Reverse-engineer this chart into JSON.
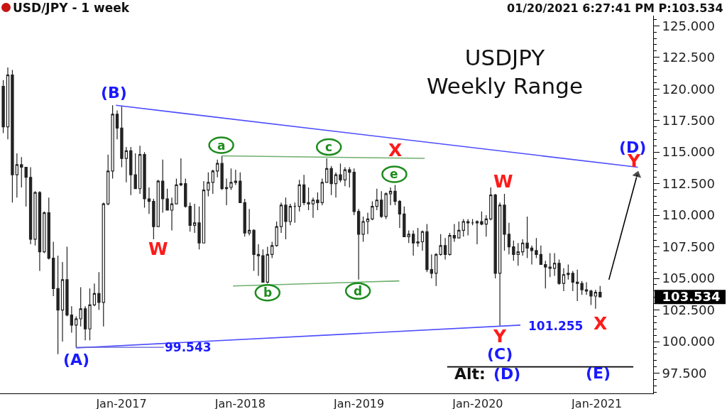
{
  "chart_data": {
    "type": "candlestick",
    "title": "USD/JPY - 1 week",
    "subtitle": "USDJPY\nWeekly Range",
    "color": "#222222",
    "x": [
      "2016-01-04",
      "2016-01-18",
      "2016-02-01",
      "2016-02-15",
      "2016-02-29",
      "2016-03-14",
      "2016-03-28",
      "2016-04-11",
      "2016-04-25",
      "2016-05-09",
      "2016-05-23",
      "2016-06-06",
      "2016-06-20",
      "2016-07-04",
      "2016-07-18",
      "2016-08-01",
      "2016-08-15",
      "2016-08-29",
      "2016-09-12",
      "2016-09-26",
      "2016-10-10",
      "2016-10-24",
      "2016-11-07",
      "2016-11-21",
      "2016-12-05",
      "2016-12-19",
      "2017-01-02",
      "2017-01-16",
      "2017-01-30",
      "2017-02-13",
      "2017-02-27",
      "2017-03-13",
      "2017-03-27",
      "2017-04-10",
      "2017-04-24",
      "2017-05-08",
      "2017-05-22",
      "2017-06-05",
      "2017-06-19",
      "2017-07-03",
      "2017-07-17",
      "2017-07-31",
      "2017-08-14",
      "2017-08-28",
      "2017-09-11",
      "2017-09-25",
      "2017-10-09",
      "2017-10-23",
      "2017-11-06",
      "2017-11-20",
      "2017-12-04",
      "2017-12-18",
      "2018-01-01",
      "2018-01-15",
      "2018-01-29",
      "2018-02-12",
      "2018-02-26",
      "2018-03-12",
      "2018-03-26",
      "2018-04-09",
      "2018-04-23",
      "2018-05-07",
      "2018-05-21",
      "2018-06-04",
      "2018-06-18",
      "2018-07-02",
      "2018-07-16",
      "2018-07-30",
      "2018-08-13",
      "2018-08-27",
      "2018-09-10",
      "2018-09-24",
      "2018-10-08",
      "2018-10-22",
      "2018-11-05",
      "2018-11-19",
      "2018-12-03",
      "2018-12-17",
      "2018-12-31",
      "2019-01-14",
      "2019-01-28",
      "2019-02-11",
      "2019-02-25",
      "2019-03-11",
      "2019-03-25",
      "2019-04-08",
      "2019-04-22",
      "2019-05-06",
      "2019-05-20",
      "2019-06-03",
      "2019-06-17",
      "2019-07-01",
      "2019-07-15",
      "2019-07-29",
      "2019-08-12",
      "2019-08-26",
      "2019-09-09",
      "2019-09-23",
      "2019-10-07",
      "2019-10-21",
      "2019-11-04",
      "2019-11-18",
      "2019-12-02",
      "2019-12-16",
      "2019-12-30",
      "2020-01-13",
      "2020-01-27",
      "2020-02-10",
      "2020-02-24",
      "2020-03-09",
      "2020-03-23",
      "2020-04-06",
      "2020-04-20",
      "2020-05-04",
      "2020-05-18",
      "2020-06-01",
      "2020-06-15",
      "2020-06-29",
      "2020-07-13",
      "2020-07-27",
      "2020-08-10",
      "2020-08-24",
      "2020-09-07",
      "2020-09-21",
      "2020-10-05",
      "2020-10-19",
      "2020-11-02",
      "2020-11-16",
      "2020-11-30",
      "2020-12-14",
      "2020-12-28",
      "2021-01-11"
    ],
    "ohlc": [
      [
        120.2,
        120.7,
        116.5,
        117.0
      ],
      [
        117.0,
        121.7,
        116.0,
        121.1
      ],
      [
        121.1,
        121.5,
        111.0,
        113.2
      ],
      [
        113.2,
        114.9,
        111.4,
        114.0
      ],
      [
        114.0,
        114.6,
        112.2,
        113.8
      ],
      [
        113.8,
        113.8,
        110.7,
        113.0
      ],
      [
        113.0,
        113.8,
        107.7,
        108.1
      ],
      [
        108.1,
        111.9,
        107.6,
        111.8
      ],
      [
        111.8,
        111.9,
        105.6,
        107.1
      ],
      [
        107.1,
        110.3,
        107.0,
        110.2
      ],
      [
        110.2,
        111.4,
        106.5,
        106.6
      ],
      [
        106.6,
        107.9,
        103.6,
        104.2
      ],
      [
        104.2,
        106.8,
        99.0,
        102.5
      ],
      [
        102.5,
        106.3,
        100.0,
        104.9
      ],
      [
        104.9,
        107.5,
        102.0,
        102.1
      ],
      [
        102.1,
        102.8,
        100.7,
        101.3
      ],
      [
        101.3,
        102.0,
        99.543,
        101.8
      ],
      [
        101.8,
        104.3,
        101.2,
        102.6
      ],
      [
        102.6,
        102.8,
        100.1,
        101.0
      ],
      [
        101.0,
        104.2,
        100.1,
        102.9
      ],
      [
        102.9,
        104.6,
        102.8,
        103.8
      ],
      [
        103.8,
        105.5,
        102.5,
        103.1
      ],
      [
        103.1,
        111.0,
        101.2,
        110.9
      ],
      [
        110.9,
        114.8,
        110.8,
        113.5
      ],
      [
        113.5,
        118.7,
        112.9,
        118.0
      ],
      [
        118.0,
        118.3,
        116.0,
        116.9
      ],
      [
        116.9,
        118.6,
        113.8,
        114.5
      ],
      [
        114.5,
        115.4,
        112.6,
        115.1
      ],
      [
        115.1,
        115.4,
        111.6,
        113.2
      ],
      [
        113.2,
        114.9,
        112.1,
        112.1
      ],
      [
        112.1,
        115.5,
        111.7,
        114.8
      ],
      [
        114.8,
        115.0,
        110.6,
        111.3
      ],
      [
        111.3,
        112.2,
        110.1,
        111.1
      ],
      [
        111.1,
        111.3,
        108.1,
        109.1
      ],
      [
        109.1,
        112.8,
        109.1,
        112.7
      ],
      [
        112.7,
        114.4,
        110.2,
        111.3
      ],
      [
        111.3,
        112.1,
        110.4,
        110.4
      ],
      [
        110.4,
        111.4,
        108.8,
        110.9
      ],
      [
        110.9,
        112.9,
        110.9,
        112.4
      ],
      [
        112.4,
        114.5,
        112.3,
        112.5
      ],
      [
        112.5,
        112.9,
        110.6,
        110.7
      ],
      [
        110.7,
        111.0,
        108.7,
        109.2
      ],
      [
        109.2,
        110.9,
        108.6,
        109.4
      ],
      [
        109.4,
        110.7,
        107.3,
        107.8
      ],
      [
        107.8,
        112.7,
        107.8,
        112.0
      ],
      [
        112.0,
        113.4,
        111.5,
        112.6
      ],
      [
        112.6,
        113.6,
        111.7,
        113.5
      ],
      [
        113.5,
        114.4,
        113.0,
        114.1
      ],
      [
        114.1,
        114.7,
        112.0,
        112.1
      ],
      [
        112.1,
        112.9,
        110.8,
        112.2
      ],
      [
        112.2,
        113.7,
        112.0,
        112.6
      ],
      [
        112.6,
        113.6,
        112.4,
        112.7
      ],
      [
        112.7,
        113.4,
        111.0,
        111.0
      ],
      [
        111.0,
        111.3,
        108.3,
        108.6
      ],
      [
        108.6,
        110.5,
        108.4,
        108.8
      ],
      [
        108.8,
        108.9,
        105.6,
        106.9
      ],
      [
        106.9,
        107.7,
        105.2,
        106.8
      ],
      [
        106.8,
        107.3,
        104.7,
        104.7
      ],
      [
        104.7,
        107.5,
        104.6,
        106.9
      ],
      [
        106.9,
        107.9,
        106.6,
        107.6
      ],
      [
        107.6,
        109.5,
        107.5,
        109.1
      ],
      [
        109.1,
        111.0,
        108.6,
        110.8
      ],
      [
        110.8,
        111.4,
        108.1,
        109.5
      ],
      [
        109.5,
        110.9,
        109.2,
        110.7
      ],
      [
        110.7,
        111.0,
        109.4,
        110.7
      ],
      [
        110.7,
        112.8,
        110.3,
        112.4
      ],
      [
        112.4,
        113.2,
        110.8,
        111.0
      ],
      [
        111.0,
        112.2,
        110.4,
        110.9
      ],
      [
        110.9,
        111.4,
        109.8,
        111.2
      ],
      [
        111.2,
        111.8,
        110.4,
        111.0
      ],
      [
        111.0,
        112.9,
        110.8,
        112.6
      ],
      [
        112.6,
        114.5,
        112.6,
        113.7
      ],
      [
        113.7,
        113.9,
        111.6,
        112.5
      ],
      [
        112.5,
        113.4,
        111.4,
        113.2
      ],
      [
        113.2,
        114.1,
        112.6,
        112.8
      ],
      [
        112.8,
        113.8,
        112.3,
        113.6
      ],
      [
        113.6,
        113.8,
        112.2,
        113.4
      ],
      [
        113.4,
        113.7,
        110.0,
        110.3
      ],
      [
        110.3,
        110.5,
        104.9,
        108.5
      ],
      [
        108.5,
        109.9,
        107.9,
        109.5
      ],
      [
        109.5,
        110.2,
        108.5,
        109.7
      ],
      [
        109.7,
        111.1,
        109.6,
        110.7
      ],
      [
        110.7,
        112.1,
        110.4,
        111.2
      ],
      [
        111.2,
        111.9,
        109.8,
        109.9
      ],
      [
        109.9,
        111.8,
        109.7,
        111.7
      ],
      [
        111.7,
        112.2,
        110.8,
        111.9
      ],
      [
        111.9,
        112.4,
        110.8,
        111.1
      ],
      [
        111.1,
        111.2,
        109.0,
        110.1
      ],
      [
        110.1,
        110.7,
        108.3,
        108.3
      ],
      [
        108.3,
        108.8,
        107.8,
        108.5
      ],
      [
        108.5,
        108.8,
        106.8,
        107.8
      ],
      [
        107.8,
        109.0,
        107.5,
        107.9
      ],
      [
        107.9,
        108.8,
        107.2,
        108.7
      ],
      [
        108.7,
        109.3,
        105.5,
        105.7
      ],
      [
        105.7,
        106.9,
        105.0,
        105.4
      ],
      [
        105.4,
        107.0,
        104.4,
        106.9
      ],
      [
        106.9,
        108.5,
        106.8,
        107.6
      ],
      [
        107.6,
        108.2,
        106.5,
        106.9
      ],
      [
        106.9,
        108.6,
        106.8,
        108.4
      ],
      [
        108.4,
        109.3,
        107.9,
        108.2
      ],
      [
        108.2,
        109.5,
        108.2,
        108.8
      ],
      [
        108.8,
        109.7,
        108.3,
        109.5
      ],
      [
        109.5,
        109.7,
        108.4,
        109.4
      ],
      [
        109.4,
        109.7,
        109.2,
        109.4
      ],
      [
        109.4,
        109.6,
        107.7,
        109.5
      ],
      [
        109.5,
        110.3,
        109.2,
        109.3
      ],
      [
        109.3,
        110.0,
        108.3,
        109.7
      ],
      [
        109.7,
        112.2,
        109.6,
        111.6
      ],
      [
        111.6,
        111.7,
        105.0,
        105.4
      ],
      [
        105.4,
        111.0,
        101.255,
        110.8
      ],
      [
        110.8,
        111.7,
        107.2,
        108.5
      ],
      [
        108.5,
        109.4,
        106.9,
        107.5
      ],
      [
        107.5,
        108.0,
        106.4,
        106.9
      ],
      [
        106.9,
        107.8,
        106.0,
        107.1
      ],
      [
        107.1,
        108.1,
        106.8,
        107.8
      ],
      [
        107.8,
        109.9,
        106.6,
        107.4
      ],
      [
        107.4,
        107.6,
        106.1,
        107.2
      ],
      [
        107.2,
        108.2,
        106.6,
        106.9
      ],
      [
        106.9,
        107.6,
        106.1,
        106.1
      ],
      [
        106.1,
        106.4,
        104.2,
        105.9
      ],
      [
        105.9,
        107.0,
        105.1,
        105.8
      ],
      [
        105.8,
        107.0,
        105.2,
        106.2
      ],
      [
        106.2,
        106.5,
        104.5,
        104.6
      ],
      [
        104.6,
        105.8,
        104.0,
        105.3
      ],
      [
        105.3,
        106.1,
        104.9,
        105.4
      ],
      [
        105.4,
        105.6,
        104.0,
        104.7
      ],
      [
        104.7,
        105.7,
        103.2,
        104.6
      ],
      [
        104.6,
        104.8,
        103.7,
        104.1
      ],
      [
        104.1,
        104.7,
        103.7,
        104.0
      ],
      [
        104.0,
        104.1,
        102.9,
        103.6
      ],
      [
        103.6,
        104.1,
        102.6,
        103.9
      ],
      [
        103.9,
        104.4,
        103.5,
        103.534
      ]
    ],
    "series": [
      {
        "type": "line",
        "color": "#4d4dff",
        "x": [
          "2016-12-15",
          "2021-05-07"
        ],
        "values": [
          118.7,
          113.8
        ]
      },
      {
        "type": "line",
        "color": "#4d4dff",
        "x": [
          "2016-08-15",
          "2020-05-11"
        ],
        "values": [
          99.5,
          101.3
        ]
      },
      {
        "type": "line",
        "color": "#6fae6f",
        "x": [
          "2017-11-07",
          "2019-07-22"
        ],
        "values": [
          114.7,
          114.5
        ]
      },
      {
        "type": "line",
        "color": "#6fae6f",
        "x": [
          "2017-12-10",
          "2019-05-05"
        ],
        "values": [
          104.4,
          104.8
        ]
      },
      {
        "type": "line",
        "color": "#000000",
        "x": [
          "2021-02-07",
          "2021-05-05"
        ],
        "values": [
          104.9,
          113.2
        ],
        "marker": "triangle"
      },
      {
        "type": "line",
        "color": "#000000",
        "x": [
          "2019-09-29",
          "2021-04-23"
        ],
        "values": [
          98.0,
          98.0
        ]
      }
    ],
    "xlim": [
      "2015-12-25",
      "2021-06-23"
    ],
    "xticks": [
      {
        "value": "2017-01-01",
        "label": "Jan-2017"
      },
      {
        "value": "2018-01-01",
        "label": "Jan-2018"
      },
      {
        "value": "2019-01-01",
        "label": "Jan-2019"
      },
      {
        "value": "2020-01-01",
        "label": "Jan-2020"
      },
      {
        "value": "2021-01-01",
        "label": "Jan-2021"
      }
    ],
    "ylim": [
      95.9,
      125.8
    ],
    "yticks": [
      {
        "value": 96,
        "label": null
      },
      {
        "value": 96.5,
        "label": null
      },
      {
        "value": 97,
        "label": null
      },
      {
        "value": 97.5,
        "label": "97.500"
      },
      {
        "value": 98,
        "label": null
      },
      {
        "value": 98.5,
        "label": null
      },
      {
        "value": 99,
        "label": null
      },
      {
        "value": 99.5,
        "label": null
      },
      {
        "value": 100,
        "label": "100.000"
      },
      {
        "value": 100.5,
        "label": null
      },
      {
        "value": 101,
        "label": null
      },
      {
        "value": 101.5,
        "label": null
      },
      {
        "value": 102,
        "label": null
      },
      {
        "value": 102.5,
        "label": "102.500"
      },
      {
        "value": 103,
        "label": null
      },
      {
        "value": 103.5,
        "label": null
      },
      {
        "value": 103.534,
        "label": "103.534"
      },
      {
        "value": 104,
        "label": null
      },
      {
        "value": 104.5,
        "label": null
      },
      {
        "value": 105,
        "label": "105.000"
      },
      {
        "value": 105.5,
        "label": null
      },
      {
        "value": 106,
        "label": null
      },
      {
        "value": 106.5,
        "label": null
      },
      {
        "value": 107,
        "label": null
      },
      {
        "value": 107.5,
        "label": "107.500"
      },
      {
        "value": 108,
        "label": null
      },
      {
        "value": 108.5,
        "label": null
      },
      {
        "value": 109,
        "label": null
      },
      {
        "value": 109.5,
        "label": null
      },
      {
        "value": 110,
        "label": "110.000"
      },
      {
        "value": 110.5,
        "label": null
      },
      {
        "value": 111,
        "label": null
      },
      {
        "value": 111.5,
        "label": null
      },
      {
        "value": 112,
        "label": null
      },
      {
        "value": 112.5,
        "label": "112.500"
      },
      {
        "value": 113,
        "label": null
      },
      {
        "value": 113.5,
        "label": null
      },
      {
        "value": 114,
        "label": null
      },
      {
        "value": 114.5,
        "label": null
      },
      {
        "value": 115,
        "label": "115.000"
      },
      {
        "value": 115.5,
        "label": null
      },
      {
        "value": 116,
        "label": null
      },
      {
        "value": 116.5,
        "label": null
      },
      {
        "value": 117,
        "label": null
      },
      {
        "value": 117.5,
        "label": "117.500"
      },
      {
        "value": 118,
        "label": null
      },
      {
        "value": 118.5,
        "label": null
      },
      {
        "value": 119,
        "label": null
      },
      {
        "value": 119.5,
        "label": null
      },
      {
        "value": 120,
        "label": "120.000"
      },
      {
        "value": 120.5,
        "label": null
      },
      {
        "value": 121,
        "label": null
      },
      {
        "value": 121.5,
        "label": null
      },
      {
        "value": 122,
        "label": null
      },
      {
        "value": 122.5,
        "label": "122.500"
      },
      {
        "value": 123,
        "label": null
      },
      {
        "value": 123.5,
        "label": null
      },
      {
        "value": 124,
        "label": null
      },
      {
        "value": 124.5,
        "label": null
      },
      {
        "value": 125,
        "label": "125.000"
      },
      {
        "value": 125.5,
        "label": null
      }
    ],
    "annotations": [
      {
        "text": "(B)",
        "x": "2016-12-05",
        "y": 118.7
      },
      {
        "text": "(A)",
        "x": "2016-08-15",
        "y": 99.543
      },
      {
        "text": "99.543",
        "x": "2016-08-15",
        "y": 99.543
      },
      {
        "text": "W",
        "x": "2017-04-10",
        "y": 108.1
      },
      {
        "text": "a",
        "x": "2017-11-06",
        "y": 114.7
      },
      {
        "text": "b",
        "x": "2018-03-26",
        "y": 104.6
      },
      {
        "text": "c",
        "x": "2018-09-24",
        "y": 114.5
      },
      {
        "text": "d",
        "x": "2018-12-31",
        "y": 104.9
      },
      {
        "text": "X",
        "x": "2019-04-22",
        "y": 114.5
      },
      {
        "text": "e",
        "x": "2019-04-22",
        "y": 112.4
      },
      {
        "text": "W",
        "x": "2020-02-10",
        "y": 112.2
      },
      {
        "text": "Y",
        "x": "2020-03-09",
        "y": 101.255
      },
      {
        "text": "101.255",
        "x": "2020-03-09",
        "y": 101.255
      },
      {
        "text": "X",
        "x": "2020-12-28",
        "y": 102.6
      },
      {
        "text": "(C)",
        "x": "2020-03-09",
        "y": 101.255
      },
      {
        "text": "Alt:",
        "x": "2019-12-08",
        "y": 98.0
      },
      {
        "text": "(D)",
        "x": "2020-03-30",
        "y": 98.0
      },
      {
        "text": "(E)",
        "x": "2021-01-05",
        "y": 98.0
      },
      {
        "text": "(D)",
        "x": "2021-05-07",
        "y": 113.8
      },
      {
        "text": "Y",
        "x": "2021-05-07",
        "y": 113.8
      },
      "01/20/2021 6:27:41 PM P:103.534"
    ]
  }
}
